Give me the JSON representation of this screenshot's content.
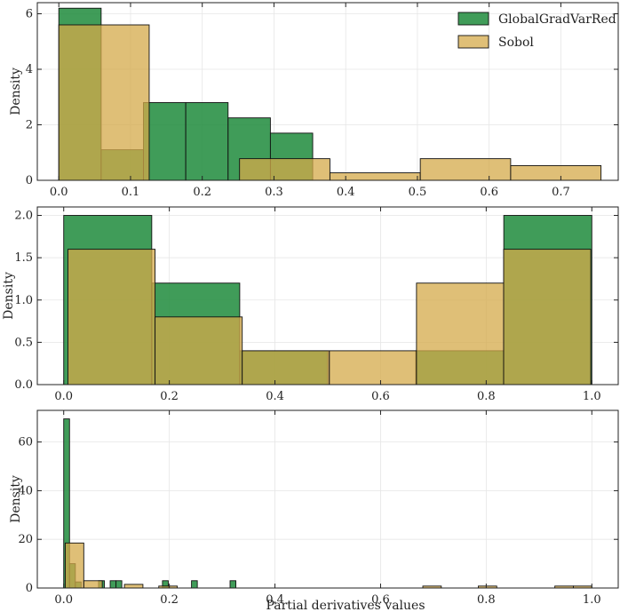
{
  "colors": {
    "green": "#1e8b3c",
    "sobol": "#d4a94a",
    "edge": "#111111",
    "grid": "#e6e6e6"
  },
  "chart_data": [
    {
      "type": "bar",
      "subtype": "histogram",
      "ylabel": "Density",
      "xlabel": "",
      "xlim": [
        -0.03,
        0.78
      ],
      "ylim": [
        0,
        6.4
      ],
      "xticks": [
        "0.0",
        "0.1",
        "0.2",
        "0.3",
        "0.4",
        "0.5",
        "0.6",
        "0.7"
      ],
      "yticks": [
        "0",
        "2",
        "4",
        "6"
      ],
      "grid": true,
      "legend": {
        "position": "top-right",
        "entries": [
          "GlobalGradVarRed",
          "Sobol"
        ]
      },
      "series": [
        {
          "name": "GlobalGradVarRed",
          "bins": [
            {
              "x0": 0.0,
              "x1": 0.059,
              "y": 6.2
            },
            {
              "x0": 0.059,
              "x1": 0.118,
              "y": 1.1
            },
            {
              "x0": 0.118,
              "x1": 0.177,
              "y": 2.8
            },
            {
              "x0": 0.177,
              "x1": 0.236,
              "y": 2.8
            },
            {
              "x0": 0.236,
              "x1": 0.295,
              "y": 2.25
            },
            {
              "x0": 0.295,
              "x1": 0.354,
              "y": 1.7
            }
          ]
        },
        {
          "name": "Sobol",
          "bins": [
            {
              "x0": 0.0,
              "x1": 0.126,
              "y": 5.6
            },
            {
              "x0": 0.126,
              "x1": 0.252,
              "y": 0.0
            },
            {
              "x0": 0.252,
              "x1": 0.378,
              "y": 0.78
            },
            {
              "x0": 0.378,
              "x1": 0.504,
              "y": 0.27
            },
            {
              "x0": 0.504,
              "x1": 0.63,
              "y": 0.78
            },
            {
              "x0": 0.63,
              "x1": 0.756,
              "y": 0.53
            }
          ]
        }
      ]
    },
    {
      "type": "bar",
      "subtype": "histogram",
      "ylabel": "Density",
      "xlabel": "",
      "xlim": [
        -0.05,
        1.05
      ],
      "ylim": [
        0,
        2.1
      ],
      "xticks": [
        "0.0",
        "0.2",
        "0.4",
        "0.6",
        "0.8",
        "1.0"
      ],
      "yticks": [
        "0.0",
        "0.5",
        "1.0",
        "1.5",
        "2.0"
      ],
      "grid": true,
      "series": [
        {
          "name": "GlobalGradVarRed",
          "bins": [
            {
              "x0": 0.0,
              "x1": 0.1667,
              "y": 2.0
            },
            {
              "x0": 0.1667,
              "x1": 0.3333,
              "y": 1.2
            },
            {
              "x0": 0.3333,
              "x1": 0.5,
              "y": 0.4
            },
            {
              "x0": 0.5,
              "x1": 0.6667,
              "y": 0.0
            },
            {
              "x0": 0.6667,
              "x1": 0.8333,
              "y": 0.4
            },
            {
              "x0": 0.8333,
              "x1": 1.0,
              "y": 2.0
            }
          ]
        },
        {
          "name": "Sobol",
          "bins": [
            {
              "x0": 0.008,
              "x1": 0.173,
              "y": 1.6
            },
            {
              "x0": 0.173,
              "x1": 0.338,
              "y": 0.8
            },
            {
              "x0": 0.338,
              "x1": 0.503,
              "y": 0.4
            },
            {
              "x0": 0.503,
              "x1": 0.668,
              "y": 0.4
            },
            {
              "x0": 0.668,
              "x1": 0.833,
              "y": 1.2
            },
            {
              "x0": 0.833,
              "x1": 0.998,
              "y": 1.6
            }
          ]
        }
      ]
    },
    {
      "type": "bar",
      "subtype": "histogram",
      "ylabel": "Density",
      "xlabel": "Partial derivatives values",
      "xlim": [
        -0.05,
        1.05
      ],
      "ylim": [
        0,
        73
      ],
      "xticks": [
        "0.0",
        "0.2",
        "0.4",
        "0.6",
        "0.8",
        "1.0"
      ],
      "yticks": [
        "0",
        "20",
        "40",
        "60"
      ],
      "grid": true,
      "series": [
        {
          "name": "GlobalGradVarRed",
          "bins": [
            {
              "x0": 0.0,
              "x1": 0.011,
              "y": 69.5
            },
            {
              "x0": 0.011,
              "x1": 0.022,
              "y": 10.0
            },
            {
              "x0": 0.022,
              "x1": 0.033,
              "y": 2.5
            },
            {
              "x0": 0.066,
              "x1": 0.077,
              "y": 3.0
            },
            {
              "x0": 0.088,
              "x1": 0.099,
              "y": 3.0
            },
            {
              "x0": 0.099,
              "x1": 0.11,
              "y": 3.0
            },
            {
              "x0": 0.187,
              "x1": 0.198,
              "y": 3.0
            },
            {
              "x0": 0.242,
              "x1": 0.253,
              "y": 3.0
            },
            {
              "x0": 0.315,
              "x1": 0.326,
              "y": 3.0
            }
          ]
        },
        {
          "name": "Sobol",
          "bins": [
            {
              "x0": 0.003,
              "x1": 0.038,
              "y": 18.5
            },
            {
              "x0": 0.038,
              "x1": 0.073,
              "y": 3.0
            },
            {
              "x0": 0.115,
              "x1": 0.15,
              "y": 1.5
            },
            {
              "x0": 0.18,
              "x1": 0.215,
              "y": 0.8
            },
            {
              "x0": 0.68,
              "x1": 0.715,
              "y": 0.8
            },
            {
              "x0": 0.785,
              "x1": 0.82,
              "y": 0.8
            },
            {
              "x0": 0.93,
              "x1": 0.965,
              "y": 0.8
            },
            {
              "x0": 0.965,
              "x1": 1.0,
              "y": 0.8
            }
          ]
        }
      ]
    }
  ]
}
